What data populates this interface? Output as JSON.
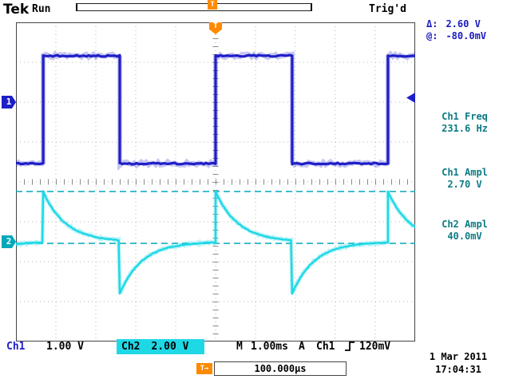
{
  "header": {
    "brand": "Tek",
    "acq_status": "Run",
    "trig_status": "Trig'd"
  },
  "trigger_marker": "T",
  "cursors": {
    "delta_label": "Δ:",
    "delta_value": "2.60 V",
    "at_label": "@:",
    "at_value": "-80.0mV"
  },
  "measurements": [
    {
      "label": "Ch1 Freq",
      "value": "231.6 Hz"
    },
    {
      "label": "Ch1 Ampl",
      "value": "2.70 V"
    },
    {
      "label": "Ch2 Ampl",
      "value": "40.0mV"
    }
  ],
  "channel_markers": {
    "ch1": "1",
    "ch2": "2"
  },
  "statusbar": {
    "ch1_label": "Ch1",
    "ch1_scale": "1.00 V",
    "ch2_label": "Ch2",
    "ch2_scale": "2.00 V",
    "timebase_label": "M",
    "timebase": "1.00ms",
    "trig_mode": "A",
    "trig_source": "Ch1",
    "trig_level": "120mV"
  },
  "delay": {
    "marker": "T→",
    "value": "100.000µs"
  },
  "datetime": {
    "date": "1 Mar 2011",
    "time": "17:04:31"
  },
  "colors": {
    "ch1": "#1e1ec8",
    "ch2": "#1fd8e6",
    "ch2_marker": "#00a8b8",
    "trigger": "#ff8a00",
    "cursor": "#00a8bc",
    "measure_text": "#0c7c84",
    "cursor_text": "#1b1bbe",
    "grid": "#b4b4b4"
  },
  "chart_data": {
    "type": "line",
    "title": "Oscilloscope traces Ch1/Ch2",
    "timebase_ms_per_div": 1.0,
    "divisions_x": 10,
    "divisions_y": 8,
    "series": [
      {
        "name": "Ch1 square wave",
        "volts_per_div": 1.0,
        "frequency_hz": 231.6,
        "amplitude_v": 2.7,
        "high_v": 1.16,
        "low_v": -1.54,
        "duty_high_fraction": 0.444,
        "ground_div_from_center": 2.0
      },
      {
        "name": "Ch2 differentiated pulses",
        "volts_per_div": 2.0,
        "peak_v": 2.52,
        "min_v": -2.6,
        "decay_tau_ms": 0.56,
        "ground_div_from_center": -1.5,
        "amplitude_reading_v": 0.04
      }
    ],
    "cursor_lines_v": [
      2.52,
      -0.08
    ],
    "trigger": {
      "source": "Ch1",
      "level_v": 0.12,
      "position_div_from_left": 5.0
    }
  }
}
